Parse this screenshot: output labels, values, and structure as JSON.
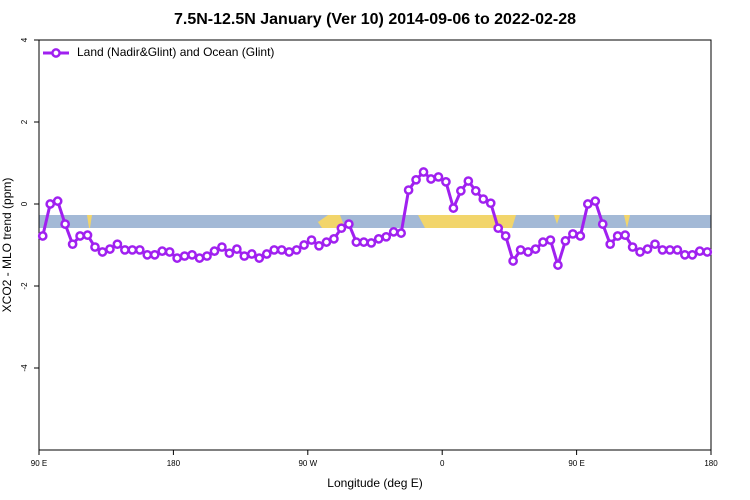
{
  "chart_data": {
    "type": "line",
    "title": "7.5N-12.5N January (Ver 10)   2014-09-06 to 2022-02-28",
    "xlabel": "Longitude (deg E)",
    "ylabel": "XCO2 - MLO trend (ppm)",
    "x": [
      92.5,
      97.5,
      102.5,
      107.5,
      112.5,
      117.5,
      122.5,
      127.5,
      132.5,
      137.5,
      142.5,
      147.5,
      152.5,
      157.5,
      162.5,
      167.5,
      172.5,
      177.5,
      182.5,
      187.5,
      192.5,
      197.5,
      202.5,
      207.5,
      212.5,
      217.5,
      222.5,
      227.5,
      232.5,
      237.5,
      242.5,
      247.5,
      252.5,
      257.5,
      262.5,
      267.5,
      272.5,
      277.5,
      282.5,
      287.5,
      292.5,
      297.5,
      302.5,
      307.5,
      312.5,
      317.5,
      322.5,
      327.5,
      332.5,
      337.5,
      342.5,
      347.5,
      352.5,
      357.5,
      362.5,
      367.5,
      372.5,
      377.5,
      382.5,
      387.5,
      392.5,
      397.5,
      402.5,
      407.5,
      412.5,
      417.5,
      422.5,
      427.5,
      432.5,
      437.5,
      442.5,
      447.5,
      452.5,
      457.5,
      462.5,
      467.5,
      472.5,
      477.5,
      482.5,
      487.5,
      492.5,
      497.5,
      502.5,
      507.5,
      512.5,
      517.5,
      522.5,
      527.5,
      532.5,
      537.5
    ],
    "series": [
      {
        "name": "Land (Nadir&Glint) and Ocean (Glint)",
        "color": "#a020f0",
        "values": [
          -0.78,
          0.0,
          0.07,
          -0.49,
          -0.98,
          -0.78,
          -0.76,
          -1.05,
          -1.17,
          -1.1,
          -0.98,
          -1.12,
          -1.12,
          -1.12,
          -1.24,
          -1.24,
          -1.15,
          -1.17,
          -1.32,
          -1.27,
          -1.24,
          -1.32,
          -1.27,
          -1.15,
          -1.05,
          -1.2,
          -1.1,
          -1.27,
          -1.22,
          -1.32,
          -1.22,
          -1.12,
          -1.12,
          -1.17,
          -1.12,
          -1.0,
          -0.88,
          -1.02,
          -0.93,
          -0.85,
          -0.59,
          -0.49,
          -0.93,
          -0.93,
          -0.95,
          -0.85,
          -0.8,
          -0.68,
          -0.71,
          0.34,
          0.59,
          0.78,
          0.61,
          0.66,
          0.54,
          -0.1,
          0.32,
          0.56,
          0.32,
          0.12,
          0.02,
          -0.59,
          -0.78,
          -1.39,
          -1.12,
          -1.17,
          -1.1,
          -0.93,
          -0.88,
          -1.49,
          -0.9,
          -0.73,
          -0.78,
          0.0,
          0.07,
          -0.49,
          -0.98,
          -0.78,
          -0.76,
          -1.05,
          -1.17,
          -1.1,
          -0.98,
          -1.12,
          -1.12,
          -1.12,
          -1.24,
          -1.24,
          -1.15,
          -1.17
        ]
      }
    ],
    "xlim": [
      90,
      540
    ],
    "xticks": [
      {
        "value": 90,
        "label": "90 E"
      },
      180,
      {
        "value": 270,
        "label": "90 W"
      },
      {
        "value": 360,
        "label": "0"
      },
      {
        "value": 450,
        "label": "90 E"
      },
      {
        "value": 540,
        "label": "180"
      }
    ],
    "ylim": [
      -6,
      4
    ],
    "yticks": [
      4,
      2,
      0,
      -2,
      -4
    ],
    "legend": "top-left"
  }
}
